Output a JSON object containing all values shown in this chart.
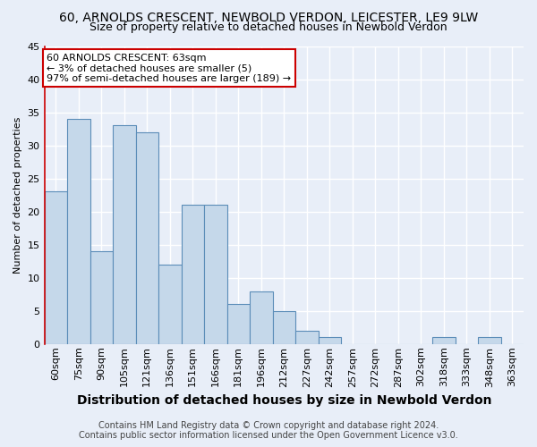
{
  "title": "60, ARNOLDS CRESCENT, NEWBOLD VERDON, LEICESTER, LE9 9LW",
  "subtitle": "Size of property relative to detached houses in Newbold Verdon",
  "xlabel": "Distribution of detached houses by size in Newbold Verdon",
  "ylabel": "Number of detached properties",
  "footnote": "Contains HM Land Registry data © Crown copyright and database right 2024.\nContains public sector information licensed under the Open Government Licence v3.0.",
  "categories": [
    "60sqm",
    "75sqm",
    "90sqm",
    "105sqm",
    "121sqm",
    "136sqm",
    "151sqm",
    "166sqm",
    "181sqm",
    "196sqm",
    "212sqm",
    "227sqm",
    "242sqm",
    "257sqm",
    "272sqm",
    "287sqm",
    "302sqm",
    "318sqm",
    "333sqm",
    "348sqm",
    "363sqm"
  ],
  "values": [
    23,
    34,
    14,
    33,
    32,
    12,
    21,
    21,
    6,
    8,
    5,
    2,
    1,
    0,
    0,
    0,
    0,
    1,
    0,
    1,
    0
  ],
  "bar_color": "#c5d8ea",
  "bar_edge_color": "#5b8db8",
  "background_color": "#e8eef8",
  "grid_color": "#ffffff",
  "annotation_line1": "60 ARNOLDS CRESCENT: 63sqm",
  "annotation_line2": "← 3% of detached houses are smaller (5)",
  "annotation_line3": "97% of semi-detached houses are larger (189) →",
  "annotation_box_color": "#ffffff",
  "annotation_box_edge_color": "#cc0000",
  "left_spine_color": "#cc0000",
  "ylim": [
    0,
    45
  ],
  "yticks": [
    0,
    5,
    10,
    15,
    20,
    25,
    30,
    35,
    40,
    45
  ],
  "title_fontsize": 10,
  "subtitle_fontsize": 9,
  "xlabel_fontsize": 10,
  "ylabel_fontsize": 8,
  "footnote_fontsize": 7,
  "tick_fontsize": 8
}
